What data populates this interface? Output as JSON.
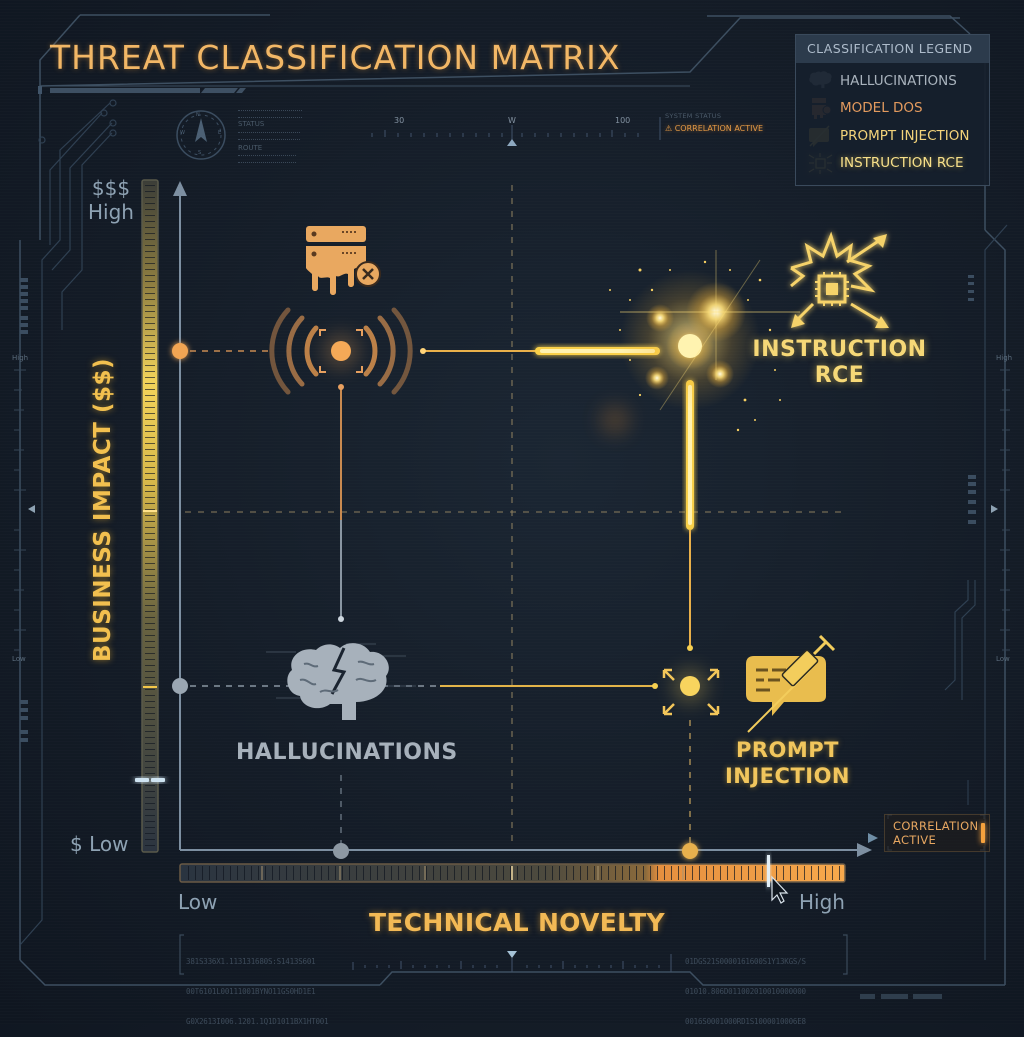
{
  "header": {
    "title": "THREAT CLASSIFICATION MATRIX"
  },
  "legend": {
    "title": "CLASSIFICATION LEGEND",
    "items": [
      {
        "label": "HALLUCINATIONS",
        "icon": "brain-icon",
        "color": "#a9b3bd"
      },
      {
        "label": "MODEL DOS",
        "icon": "server-melt-icon",
        "color": "#e39a5e"
      },
      {
        "label": "PROMPT INJECTION",
        "icon": "syringe-chat-icon",
        "color": "#f3d37a"
      },
      {
        "label": "INSTRUCTION RCE",
        "icon": "chip-burst-icon",
        "color": "#f7e08a"
      }
    ]
  },
  "compass": {
    "labels": [
      "N",
      "E",
      "S",
      "W"
    ],
    "side_text": [
      "STATUS",
      "ROUTE"
    ]
  },
  "heading_scale": {
    "labels": [
      "30",
      "W",
      "100"
    ]
  },
  "system_status": {
    "label": "SYSTEM STATUS",
    "warning": "CORRELATION ACTIVE"
  },
  "y_axis": {
    "title": "BUSINESS IMPACT ($$)",
    "high_symbol": "$$$",
    "high_label": "High",
    "low_label": "$ Low",
    "side_high": "High",
    "side_low": "Low"
  },
  "x_axis": {
    "title": "TECHNICAL NOVELTY",
    "low_label": "Low",
    "high_label": "High"
  },
  "correlation_badge": {
    "line1": "CORRELATION",
    "line2": "ACTIVE"
  },
  "data_readout": {
    "left": [
      "381S336X1.113131680S:S1413S601",
      "00T6101L00111001BYNO11GS0HD1E1",
      "G0X2613I006.1201.1Q1D1011BX1HT001"
    ],
    "right": [
      "01DGS21S0000161600S1Y13KGS/S",
      "01010.806D011002010010000000",
      "0016S0001000RD1S1000010006E8"
    ]
  },
  "colors": {
    "background": "#141c27",
    "accent_orange": "#f0a050",
    "accent_yellow": "#f6d050",
    "axis_gray": "#7d8fa1",
    "hallucination_gray": "#a7b1bb"
  },
  "chart_data": {
    "type": "scatter",
    "title": "THREAT CLASSIFICATION MATRIX",
    "xlabel": "TECHNICAL NOVELTY",
    "ylabel": "BUSINESS IMPACT ($$)",
    "x_ticks": [
      "Low",
      "High"
    ],
    "y_ticks": [
      "$ Low",
      "$$$ High"
    ],
    "xlim": [
      0,
      1
    ],
    "ylim": [
      0,
      1
    ],
    "grid": "quadrant dashed lines at midpoints",
    "legend_position": "top-right",
    "points": [
      {
        "name": "HALLUCINATIONS",
        "x": 0.24,
        "y": 0.24,
        "color": "#a7b1bb"
      },
      {
        "name": "MODEL DOS",
        "x": 0.24,
        "y": 0.74,
        "color": "#f0a050"
      },
      {
        "name": "PROMPT INJECTION",
        "x": 0.76,
        "y": 0.24,
        "color": "#f6d050"
      },
      {
        "name": "INSTRUCTION RCE",
        "x": 0.76,
        "y": 0.74,
        "color": "#ffe27a"
      }
    ],
    "connections": [
      {
        "from": "MODEL DOS",
        "to": "INSTRUCTION RCE"
      },
      {
        "from": "PROMPT INJECTION",
        "to": "INSTRUCTION RCE"
      },
      {
        "from": "HALLUCINATIONS",
        "to": "PROMPT INJECTION"
      },
      {
        "from": "HALLUCINATIONS",
        "to": "MODEL DOS"
      }
    ],
    "x_slider_value": "High",
    "y_slider_value": "Low"
  }
}
